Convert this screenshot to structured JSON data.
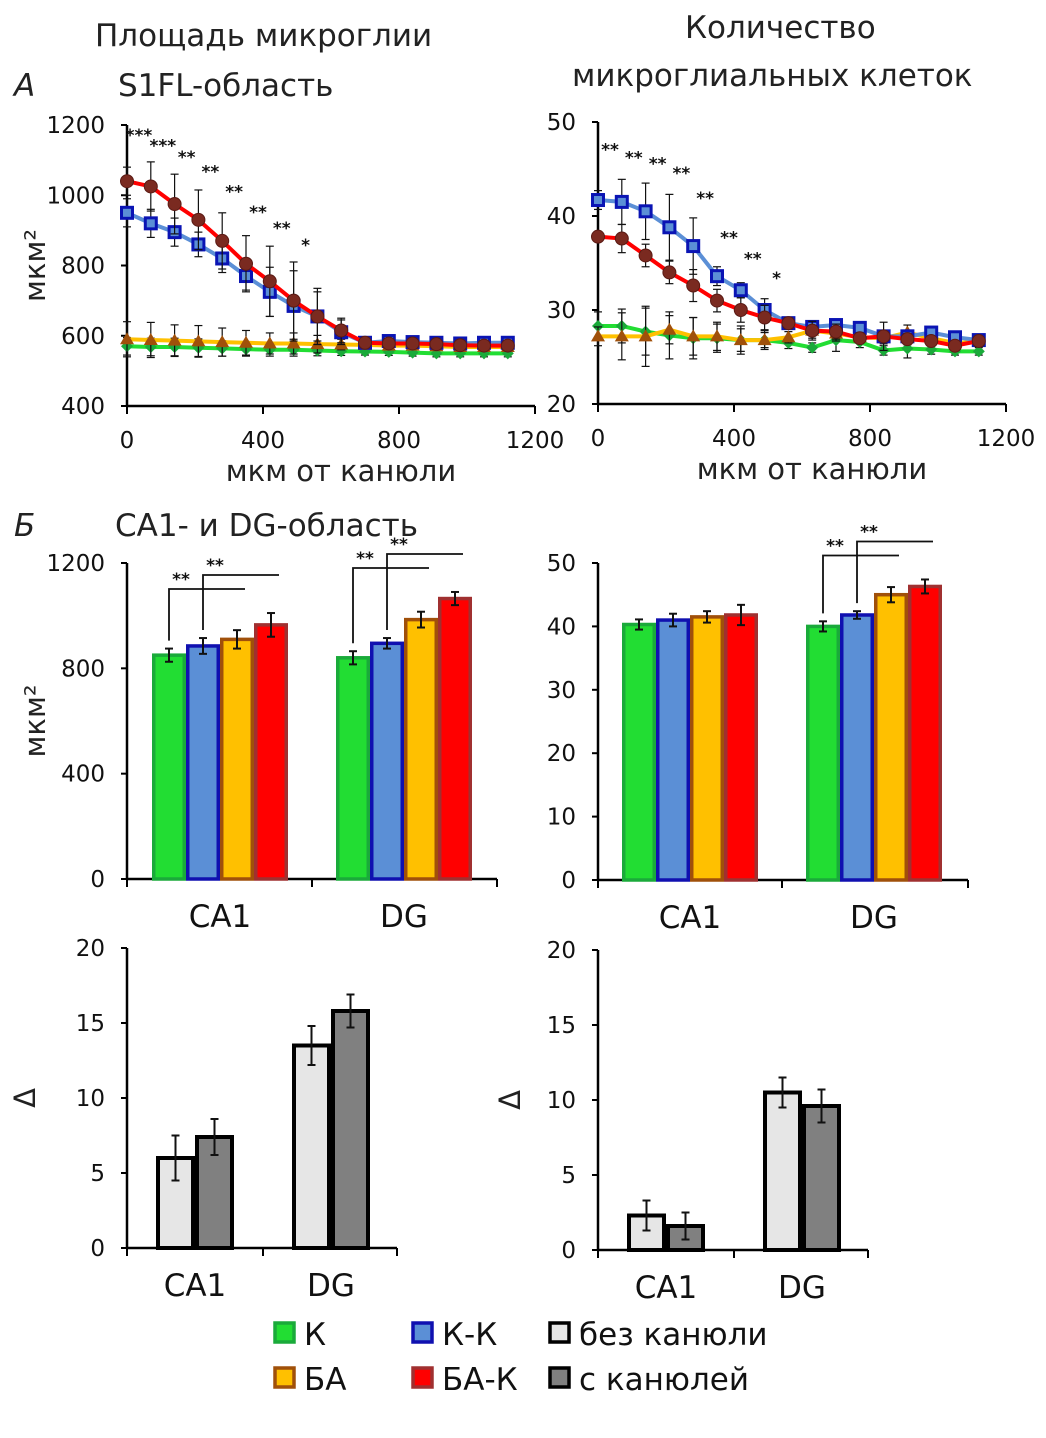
{
  "figure": {
    "panel_a_letter": "А",
    "panel_b_letter": "Б",
    "col1_title": "Площадь микроглии",
    "col2_title_line1": "Количество",
    "col2_title_line2": "микроглиальных клеток",
    "panel_a_subtitle": "S1FL-область",
    "panel_b_subtitle": "CA1- и DG-область"
  },
  "legend": {
    "items": [
      {
        "label": "К",
        "fill": "#22dd33",
        "border": "#1aaa3a"
      },
      {
        "label": "К-К",
        "fill": "#5b8fd6",
        "border": "#1010b0"
      },
      {
        "label": "без канюли",
        "fill": "#e6e6e6",
        "border": "#000000"
      },
      {
        "label": "БА",
        "fill": "#ffc000",
        "border": "#a0500a"
      },
      {
        "label": "БА-К",
        "fill": "#ff0000",
        "border": "#a03030"
      },
      {
        "label": "с канюлей",
        "fill": "#808080",
        "border": "#000000"
      }
    ]
  },
  "chart_data": [
    {
      "type": "line",
      "ylabel": "мкм²",
      "xlabel": "мкм от канюли",
      "xlim": [
        0,
        1200
      ],
      "ylim": [
        400,
        1200
      ],
      "xticks": [
        0,
        400,
        800,
        1200
      ],
      "yticks": [
        400,
        600,
        800,
        1000,
        1200
      ],
      "grid": false,
      "x": [
        0,
        70,
        140,
        210,
        280,
        350,
        420,
        490,
        560,
        630,
        700,
        770,
        840,
        910,
        980,
        1050,
        1120
      ],
      "series": [
        {
          "name": "К",
          "color": "#22dd33",
          "marker": "diamond",
          "marker_color": "#1aaa3a",
          "values": [
            570,
            568,
            568,
            566,
            564,
            562,
            560,
            560,
            558,
            556,
            555,
            554,
            552,
            550,
            550,
            550,
            550
          ],
          "errors": [
            25,
            25,
            25,
            25,
            22,
            20,
            18,
            18,
            15,
            12,
            10,
            10,
            10,
            10,
            10,
            10,
            10
          ]
        },
        {
          "name": "БА",
          "color": "#ffc000",
          "marker": "triangle",
          "marker_color": "#a0500a",
          "values": [
            590,
            588,
            586,
            584,
            582,
            580,
            578,
            578,
            576,
            575,
            574,
            572,
            572,
            570,
            568,
            568,
            568
          ],
          "errors": [
            50,
            50,
            45,
            45,
            40,
            35,
            30,
            30,
            25,
            15,
            10,
            10,
            10,
            10,
            10,
            10,
            10
          ]
        },
        {
          "name": "К-К",
          "color": "#5b8fd6",
          "marker": "square",
          "marker_color": "#0a14b4",
          "values": [
            950,
            920,
            895,
            860,
            820,
            770,
            725,
            685,
            655,
            610,
            580,
            585,
            582,
            580,
            578,
            580,
            580
          ],
          "errors": [
            40,
            40,
            40,
            35,
            40,
            40,
            70,
            100,
            70,
            35,
            10,
            10,
            10,
            10,
            10,
            10,
            10
          ]
        },
        {
          "name": "БА-К",
          "color": "#ff0000",
          "marker": "circle",
          "marker_color": "#7a2a20",
          "values": [
            1040,
            1025,
            975,
            930,
            870,
            805,
            755,
            700,
            655,
            615,
            580,
            578,
            578,
            576,
            573,
            572,
            572
          ],
          "errors": [
            40,
            70,
            85,
            85,
            80,
            80,
            100,
            110,
            80,
            35,
            10,
            10,
            10,
            10,
            10,
            10,
            10
          ]
        }
      ],
      "annotations": [
        {
          "x": 0,
          "y": 1172,
          "text": "***"
        },
        {
          "x": 70,
          "y": 1141,
          "text": "***"
        },
        {
          "x": 140,
          "y": 1109,
          "text": "**"
        },
        {
          "x": 210,
          "y": 1067,
          "text": "**"
        },
        {
          "x": 280,
          "y": 1010,
          "text": "**"
        },
        {
          "x": 350,
          "y": 953,
          "text": "**"
        },
        {
          "x": 420,
          "y": 907,
          "text": "**"
        },
        {
          "x": 490,
          "y": 859,
          "text": "*"
        }
      ]
    },
    {
      "type": "line",
      "ylabel": "",
      "xlabel": "мкм от канюли",
      "xlim": [
        0,
        1200
      ],
      "ylim": [
        20,
        50
      ],
      "xticks": [
        0,
        400,
        800,
        1200
      ],
      "yticks": [
        20,
        30,
        40,
        50
      ],
      "grid": false,
      "x": [
        0,
        70,
        140,
        210,
        280,
        350,
        420,
        490,
        560,
        630,
        700,
        770,
        840,
        910,
        980,
        1050,
        1120
      ],
      "series": [
        {
          "name": "К",
          "color": "#22dd33",
          "marker": "diamond",
          "marker_color": "#1aaa3a",
          "values": [
            28.3,
            28.3,
            27.7,
            27.3,
            27.0,
            27.0,
            26.8,
            26.8,
            26.5,
            26.0,
            26.8,
            26.6,
            25.7,
            25.9,
            25.8,
            25.6,
            25.6
          ],
          "errors": [
            1.5,
            1.8,
            2.5,
            2.5,
            2.2,
            1.5,
            1.2,
            0.8,
            0.6,
            0.5,
            1.2,
            0.6,
            0.5,
            1.0,
            0.5,
            0.4,
            0.4
          ]
        },
        {
          "name": "БА",
          "color": "#ffc000",
          "marker": "triangle",
          "marker_color": "#a0500a",
          "values": [
            27.2,
            27.2,
            27.2,
            27.9,
            27.2,
            27.2,
            26.8,
            26.8,
            27.1,
            27.8,
            27.5,
            27.1,
            27.0,
            27.6,
            27.0,
            26.5,
            26.6
          ],
          "errors": [
            1.0,
            2.5,
            3.2,
            1.5,
            2.0,
            1.5,
            1.5,
            1.0,
            0.6,
            0.8,
            0.8,
            0.5,
            0.6,
            0.8,
            0.4,
            0.4,
            0.4
          ]
        },
        {
          "name": "К-К",
          "color": "#5b8fd6",
          "marker": "square",
          "marker_color": "#0a14b4",
          "values": [
            41.7,
            41.5,
            40.5,
            38.8,
            36.8,
            33.6,
            32.1,
            30.0,
            28.6,
            28.2,
            28.4,
            28.1,
            27.2,
            27.2,
            27.6,
            27.1,
            26.8
          ],
          "errors": [
            1.0,
            2.4,
            3.0,
            3.5,
            3.0,
            1.0,
            0.8,
            1.2,
            0.6,
            0.5,
            0.4,
            0.4,
            0.4,
            0.4,
            0.4,
            0.4,
            0.4
          ]
        },
        {
          "name": "БА-К",
          "color": "#ff0000",
          "marker": "circle",
          "marker_color": "#7a2a20",
          "values": [
            37.8,
            37.6,
            35.8,
            34.0,
            32.6,
            31.0,
            30.0,
            29.2,
            28.6,
            27.8,
            27.7,
            27.0,
            27.2,
            26.9,
            26.7,
            26.2,
            26.7
          ],
          "errors": [
            0.5,
            1.5,
            1.2,
            1.2,
            1.7,
            1.2,
            1.3,
            1.3,
            0.6,
            1.0,
            0.8,
            0.5,
            1.5,
            0.6,
            0.5,
            0.5,
            0.5
          ]
        }
      ],
      "annotations": [
        {
          "x": 0,
          "y": 47.1,
          "text": "**"
        },
        {
          "x": 70,
          "y": 46.2,
          "text": "**"
        },
        {
          "x": 140,
          "y": 45.6,
          "text": "**"
        },
        {
          "x": 210,
          "y": 44.6,
          "text": "**"
        },
        {
          "x": 280,
          "y": 41.9,
          "text": "**"
        },
        {
          "x": 350,
          "y": 37.7,
          "text": "**"
        },
        {
          "x": 420,
          "y": 35.5,
          "text": "**"
        },
        {
          "x": 490,
          "y": 33.4,
          "text": "*"
        }
      ]
    },
    {
      "type": "bar",
      "ylabel": "мкм²",
      "ylim": [
        0,
        1200
      ],
      "yticks": [
        0,
        400,
        800,
        1200
      ],
      "categories": [
        "CA1",
        "DG"
      ],
      "series": [
        {
          "name": "К",
          "color": "#22dd33",
          "border": "#1aaa3a",
          "values": [
            850,
            840
          ],
          "errors": [
            25,
            25
          ]
        },
        {
          "name": "К-К",
          "color": "#5b8fd6",
          "border": "#1010b0",
          "values": [
            885,
            895
          ],
          "errors": [
            30,
            20
          ]
        },
        {
          "name": "БА",
          "color": "#ffc000",
          "border": "#a0500a",
          "values": [
            910,
            985
          ],
          "errors": [
            35,
            30
          ]
        },
        {
          "name": "БА-К",
          "color": "#ff0000",
          "border": "#a03030",
          "values": [
            965,
            1065
          ],
          "errors": [
            45,
            25
          ]
        }
      ],
      "annotations": [
        {
          "category": "CA1",
          "text": "**"
        },
        {
          "category": "CA1",
          "text": "**"
        },
        {
          "category": "DG",
          "text": "**"
        },
        {
          "category": "DG",
          "text": "**"
        }
      ]
    },
    {
      "type": "bar",
      "ylabel": "",
      "ylim": [
        0,
        50
      ],
      "yticks": [
        0,
        10,
        20,
        30,
        40,
        50
      ],
      "categories": [
        "CA1",
        "DG"
      ],
      "series": [
        {
          "name": "К",
          "color": "#22dd33",
          "border": "#1aaa3a",
          "values": [
            40.3,
            40.0
          ],
          "errors": [
            0.8,
            0.8
          ]
        },
        {
          "name": "К-К",
          "color": "#5b8fd6",
          "border": "#1010b0",
          "values": [
            41.0,
            41.8
          ],
          "errors": [
            1.0,
            0.6
          ]
        },
        {
          "name": "БА",
          "color": "#ffc000",
          "border": "#a0500a",
          "values": [
            41.5,
            45.0
          ],
          "errors": [
            0.9,
            1.2
          ]
        },
        {
          "name": "БА-К",
          "color": "#ff0000",
          "border": "#a03030",
          "values": [
            41.8,
            46.3
          ],
          "errors": [
            1.6,
            1.1
          ]
        }
      ],
      "annotations": [
        {
          "category": "DG",
          "text": "**"
        },
        {
          "category": "DG",
          "text": "**"
        }
      ]
    },
    {
      "type": "bar",
      "ylabel": "Δ",
      "ylim": [
        0,
        20
      ],
      "yticks": [
        0,
        5,
        10,
        15,
        20
      ],
      "categories": [
        "CA1",
        "DG"
      ],
      "series": [
        {
          "name": "без канюли",
          "color": "#e6e6e6",
          "border": "#000000",
          "values": [
            6.0,
            13.5
          ],
          "errors": [
            1.5,
            1.3
          ]
        },
        {
          "name": "с канюлей",
          "color": "#808080",
          "border": "#000000",
          "values": [
            7.4,
            15.8
          ],
          "errors": [
            1.2,
            1.1
          ]
        }
      ]
    },
    {
      "type": "bar",
      "ylabel": "Δ",
      "ylim": [
        0,
        20
      ],
      "yticks": [
        0,
        5,
        10,
        15,
        20
      ],
      "categories": [
        "CA1",
        "DG"
      ],
      "series": [
        {
          "name": "без канюли",
          "color": "#e6e6e6",
          "border": "#000000",
          "values": [
            2.3,
            10.5
          ],
          "errors": [
            1.0,
            1.0
          ]
        },
        {
          "name": "с канюлей",
          "color": "#808080",
          "border": "#000000",
          "values": [
            1.6,
            9.6
          ],
          "errors": [
            0.9,
            1.1
          ]
        }
      ]
    }
  ]
}
